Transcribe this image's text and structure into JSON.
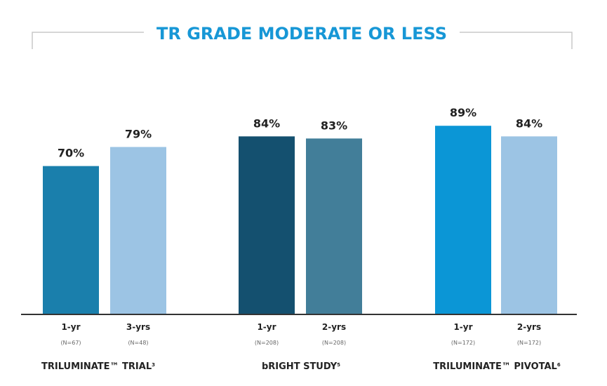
{
  "chart_data": {
    "type": "bar",
    "title": "TR GRADE MODERATE OR LESS",
    "xlabel": "",
    "ylabel": "",
    "ylim": [
      0,
      100
    ],
    "grid": false,
    "legend": "none",
    "groups": [
      {
        "label": "TRILUMINATE™ TRIAL",
        "label_sup": "3",
        "bars": [
          {
            "period": "1-yr",
            "n": "(N=67)",
            "value": 70,
            "value_label": "70%",
            "color": "#1a7fac"
          },
          {
            "period": "3-yrs",
            "n": "(N=48)",
            "value": 79,
            "value_label": "79%",
            "color": "#9cc4e4"
          }
        ]
      },
      {
        "label": "bRIGHT STUDY",
        "label_sup": "5",
        "bars": [
          {
            "period": "1-yr",
            "n": "(N=208)",
            "value": 84,
            "value_label": "84%",
            "color": "#14506f"
          },
          {
            "period": "2-yrs",
            "n": "(N=208)",
            "value": 83,
            "value_label": "83%",
            "color": "#427e99"
          }
        ]
      },
      {
        "label": "TRILUMINATE™ PIVOTAL",
        "label_sup": "6",
        "bars": [
          {
            "period": "1-yr",
            "n": "(N=172)",
            "value": 89,
            "value_label": "89%",
            "color": "#0b96d6"
          },
          {
            "period": "2-yrs",
            "n": "(N=172)",
            "value": 84,
            "value_label": "84%",
            "color": "#9cc4e4"
          }
        ]
      }
    ]
  },
  "colors": {
    "title": "#1797d6",
    "axis": "#333333",
    "bracket": "#c8c8c8"
  }
}
